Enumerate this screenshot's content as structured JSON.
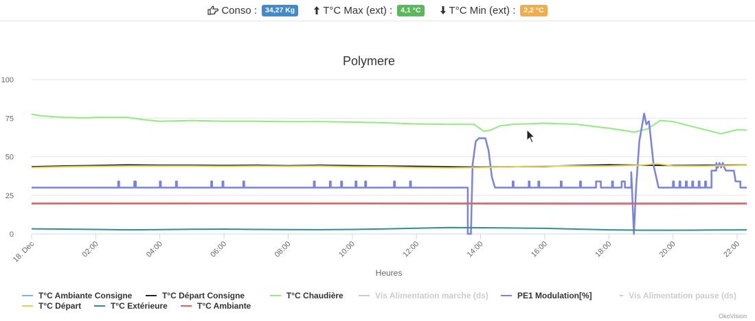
{
  "stats": {
    "conso_label": "Conso :",
    "conso_value": "34,27 Kg",
    "conso_color": "#428bca",
    "max_label": "T°C Max (ext) :",
    "max_value": "4,1 °C",
    "max_color": "#5cb85c",
    "min_label": "T°C Min (ext) :",
    "min_value": "2,2 °C",
    "min_color": "#f0ad4e"
  },
  "chart_data": {
    "type": "line",
    "title": "Polymere",
    "xlabel": "Heures",
    "ylabel": "",
    "ylim": [
      0,
      100
    ],
    "xlim": [
      0,
      22.3
    ],
    "yticks": [
      "0",
      "25",
      "50",
      "75",
      "100"
    ],
    "xticks": [
      "18. Dec",
      "02:00",
      "04:00",
      "06:00",
      "08:00",
      "10:00",
      "12:00",
      "14:00",
      "16:00",
      "18:00",
      "20:00",
      "22:00"
    ],
    "grid": true,
    "legend_position": "bottom-left",
    "series": [
      {
        "name": "T°C Ambiante Consigne",
        "color": "#7cb5ec",
        "visible": true,
        "points": [
          [
            0,
            20
          ],
          [
            22.3,
            20
          ]
        ]
      },
      {
        "name": "T°C Départ Consigne",
        "color": "#222222",
        "visible": true,
        "points": [
          [
            0,
            43.5
          ],
          [
            1,
            44
          ],
          [
            2,
            44.3
          ],
          [
            3,
            44.7
          ],
          [
            4,
            44.5
          ],
          [
            5,
            44.5
          ],
          [
            6,
            44.3
          ],
          [
            7,
            44.5
          ],
          [
            8,
            44.2
          ],
          [
            9,
            44.5
          ],
          [
            10,
            44.2
          ],
          [
            11,
            44
          ],
          [
            12,
            43.8
          ],
          [
            13,
            43.5
          ],
          [
            14,
            43.3
          ],
          [
            15,
            43.5
          ],
          [
            16,
            43.8
          ],
          [
            17,
            44.3
          ],
          [
            18,
            44.8
          ],
          [
            19,
            44.5
          ],
          [
            20,
            44.3
          ],
          [
            21,
            44.5
          ],
          [
            22.3,
            44.6
          ]
        ]
      },
      {
        "name": "T°C Chaudière",
        "color": "#90ed7d",
        "visible": true,
        "points": [
          [
            0,
            77.5
          ],
          [
            0.3,
            76.5
          ],
          [
            1,
            75.5
          ],
          [
            1.6,
            75.2
          ],
          [
            2,
            75.5
          ],
          [
            3,
            75.5
          ],
          [
            3.5,
            74
          ],
          [
            4,
            73
          ],
          [
            5,
            73.5
          ],
          [
            6,
            73
          ],
          [
            7,
            73
          ],
          [
            8,
            72.7
          ],
          [
            9,
            72.8
          ],
          [
            10,
            72.5
          ],
          [
            11,
            72
          ],
          [
            12,
            71.3
          ],
          [
            13,
            71
          ],
          [
            13.8,
            71
          ],
          [
            14.1,
            66.5
          ],
          [
            14.3,
            67.2
          ],
          [
            14.6,
            70
          ],
          [
            15,
            71
          ],
          [
            16,
            71.8
          ],
          [
            17,
            71
          ],
          [
            18,
            68.5
          ],
          [
            18.8,
            66
          ],
          [
            19.2,
            68
          ],
          [
            19.6,
            73.5
          ],
          [
            20,
            72.8
          ],
          [
            21,
            67.5
          ],
          [
            21.5,
            65
          ],
          [
            22,
            67.5
          ],
          [
            22.3,
            67.3
          ]
        ]
      },
      {
        "name": "Vis Alimentation marche (ds)",
        "color": "#cccccc",
        "visible": false,
        "points": []
      },
      {
        "name": "PE1 Modulation[%]",
        "color": "#7982e0",
        "visible": true,
        "points": [
          [
            0,
            30
          ],
          [
            2.7,
            30
          ],
          [
            2.7,
            34
          ],
          [
            2.73,
            34
          ],
          [
            2.73,
            30
          ],
          [
            3.2,
            30
          ],
          [
            3.2,
            34
          ],
          [
            3.25,
            34
          ],
          [
            3.25,
            30
          ],
          [
            4,
            30
          ],
          [
            4,
            34
          ],
          [
            4.03,
            34
          ],
          [
            4.03,
            30
          ],
          [
            4.5,
            30
          ],
          [
            4.5,
            34
          ],
          [
            4.53,
            34
          ],
          [
            4.53,
            30
          ],
          [
            5.6,
            30
          ],
          [
            5.6,
            34
          ],
          [
            5.63,
            34
          ],
          [
            5.63,
            30
          ],
          [
            5.95,
            30
          ],
          [
            5.95,
            34
          ],
          [
            5.98,
            34
          ],
          [
            5.98,
            30
          ],
          [
            6.6,
            30
          ],
          [
            6.6,
            34
          ],
          [
            6.63,
            34
          ],
          [
            6.63,
            30
          ],
          [
            8.8,
            30
          ],
          [
            8.8,
            34
          ],
          [
            8.83,
            34
          ],
          [
            8.83,
            30
          ],
          [
            9.3,
            30
          ],
          [
            9.3,
            34
          ],
          [
            9.33,
            34
          ],
          [
            9.33,
            30
          ],
          [
            9.65,
            30
          ],
          [
            9.65,
            34
          ],
          [
            9.68,
            34
          ],
          [
            9.68,
            30
          ],
          [
            10.1,
            30
          ],
          [
            10.1,
            34
          ],
          [
            10.13,
            34
          ],
          [
            10.13,
            30
          ],
          [
            10.4,
            30
          ],
          [
            10.4,
            34
          ],
          [
            10.43,
            34
          ],
          [
            10.43,
            30
          ],
          [
            11.3,
            30
          ],
          [
            11.3,
            34
          ],
          [
            11.33,
            34
          ],
          [
            11.33,
            30
          ],
          [
            11.8,
            30
          ],
          [
            11.8,
            34
          ],
          [
            11.83,
            34
          ],
          [
            11.83,
            30
          ],
          [
            13.6,
            30
          ],
          [
            13.6,
            0
          ],
          [
            13.7,
            0
          ],
          [
            13.75,
            45
          ],
          [
            13.85,
            60
          ],
          [
            13.95,
            62
          ],
          [
            14.15,
            62
          ],
          [
            14.25,
            54
          ],
          [
            14.35,
            37
          ],
          [
            14.45,
            30
          ],
          [
            15,
            30
          ],
          [
            15,
            34
          ],
          [
            15.03,
            34
          ],
          [
            15.03,
            30
          ],
          [
            15.5,
            30
          ],
          [
            15.5,
            34
          ],
          [
            15.53,
            34
          ],
          [
            15.53,
            30
          ],
          [
            15.8,
            30
          ],
          [
            15.8,
            34
          ],
          [
            15.83,
            34
          ],
          [
            15.83,
            30
          ],
          [
            16.5,
            30
          ],
          [
            16.5,
            34
          ],
          [
            16.53,
            34
          ],
          [
            16.53,
            30
          ],
          [
            17.1,
            30
          ],
          [
            17.1,
            34
          ],
          [
            17.13,
            34
          ],
          [
            17.13,
            30
          ],
          [
            17.6,
            30
          ],
          [
            17.6,
            34
          ],
          [
            17.75,
            34
          ],
          [
            17.75,
            30
          ],
          [
            18.1,
            30
          ],
          [
            18.1,
            34
          ],
          [
            18.13,
            34
          ],
          [
            18.13,
            30
          ],
          [
            18.4,
            30
          ],
          [
            18.4,
            34
          ],
          [
            18.5,
            34
          ],
          [
            18.5,
            30
          ],
          [
            18.7,
            30
          ],
          [
            18.7,
            40
          ],
          [
            18.78,
            0
          ],
          [
            18.85,
            30
          ],
          [
            18.95,
            60
          ],
          [
            19.05,
            72
          ],
          [
            19.1,
            78
          ],
          [
            19.17,
            71
          ],
          [
            19.25,
            73
          ],
          [
            19.4,
            44
          ],
          [
            19.55,
            30
          ],
          [
            20,
            30
          ],
          [
            20,
            34
          ],
          [
            20.03,
            34
          ],
          [
            20.03,
            30
          ],
          [
            20.2,
            30
          ],
          [
            20.2,
            34
          ],
          [
            20.23,
            34
          ],
          [
            20.23,
            30
          ],
          [
            20.4,
            30
          ],
          [
            20.4,
            34
          ],
          [
            20.43,
            34
          ],
          [
            20.43,
            30
          ],
          [
            20.6,
            30
          ],
          [
            20.6,
            34
          ],
          [
            20.63,
            34
          ],
          [
            20.63,
            30
          ],
          [
            20.8,
            30
          ],
          [
            20.8,
            34
          ],
          [
            20.83,
            34
          ],
          [
            20.83,
            30
          ],
          [
            21.0,
            30
          ],
          [
            21.0,
            34
          ],
          [
            21.03,
            34
          ],
          [
            21.03,
            30
          ],
          [
            21.2,
            30
          ],
          [
            21.2,
            41
          ],
          [
            21.35,
            41
          ],
          [
            21.35,
            46
          ],
          [
            21.4,
            43
          ],
          [
            21.45,
            46
          ],
          [
            21.5,
            43
          ],
          [
            21.55,
            46
          ],
          [
            21.6,
            43
          ],
          [
            21.65,
            41
          ],
          [
            21.9,
            41
          ],
          [
            21.95,
            34
          ],
          [
            22.1,
            34
          ],
          [
            22.1,
            30
          ],
          [
            22.3,
            30
          ]
        ]
      },
      {
        "name": "Vis Alimentation pause (ds)",
        "color": "#cccccc",
        "visible": false,
        "points": []
      },
      {
        "name": "T°C Départ",
        "color": "#e4d354",
        "visible": true,
        "points": [
          [
            0,
            43
          ],
          [
            1,
            43.5
          ],
          [
            2,
            43.8
          ],
          [
            3,
            44
          ],
          [
            4,
            44
          ],
          [
            5,
            44
          ],
          [
            6,
            43.8
          ],
          [
            7,
            44
          ],
          [
            8,
            43.8
          ],
          [
            9,
            44
          ],
          [
            10,
            43.5
          ],
          [
            11,
            43.5
          ],
          [
            12,
            43
          ],
          [
            13,
            42.8
          ],
          [
            14,
            43
          ],
          [
            15,
            43.5
          ],
          [
            16,
            44
          ],
          [
            17,
            44
          ],
          [
            18,
            44
          ],
          [
            19,
            44.5
          ],
          [
            19.5,
            45.5
          ],
          [
            20,
            44
          ],
          [
            21,
            44
          ],
          [
            22.3,
            44.5
          ]
        ]
      },
      {
        "name": "T°C Extérieure",
        "color": "#2b908f",
        "visible": true,
        "points": [
          [
            0,
            3.3
          ],
          [
            1,
            3.1
          ],
          [
            2,
            2.9
          ],
          [
            3,
            2.6
          ],
          [
            4,
            2.8
          ],
          [
            5,
            3
          ],
          [
            6,
            3.1
          ],
          [
            7,
            2.9
          ],
          [
            8,
            2.8
          ],
          [
            9,
            2.7
          ],
          [
            10,
            2.9
          ],
          [
            11,
            3.2
          ],
          [
            12,
            3.7
          ],
          [
            13,
            4.1
          ],
          [
            14,
            4
          ],
          [
            15,
            3.8
          ],
          [
            16,
            3.6
          ],
          [
            17,
            3.1
          ],
          [
            18,
            2.6
          ],
          [
            19,
            2.4
          ],
          [
            20,
            2.4
          ],
          [
            21,
            2.5
          ],
          [
            22.3,
            2.6
          ]
        ]
      },
      {
        "name": "T°C Ambiante",
        "color": "#f45b5b",
        "visible": true,
        "points": [
          [
            0,
            19.5
          ],
          [
            6,
            19.6
          ],
          [
            12,
            19.5
          ],
          [
            18,
            19.4
          ],
          [
            22.3,
            19.5
          ]
        ]
      }
    ]
  },
  "legend": {
    "row1": [
      0,
      1,
      2,
      3,
      4,
      5
    ],
    "row2": [
      6,
      7,
      8
    ]
  },
  "cursor_icon": "arrow-cursor",
  "credits": "OkoVision"
}
